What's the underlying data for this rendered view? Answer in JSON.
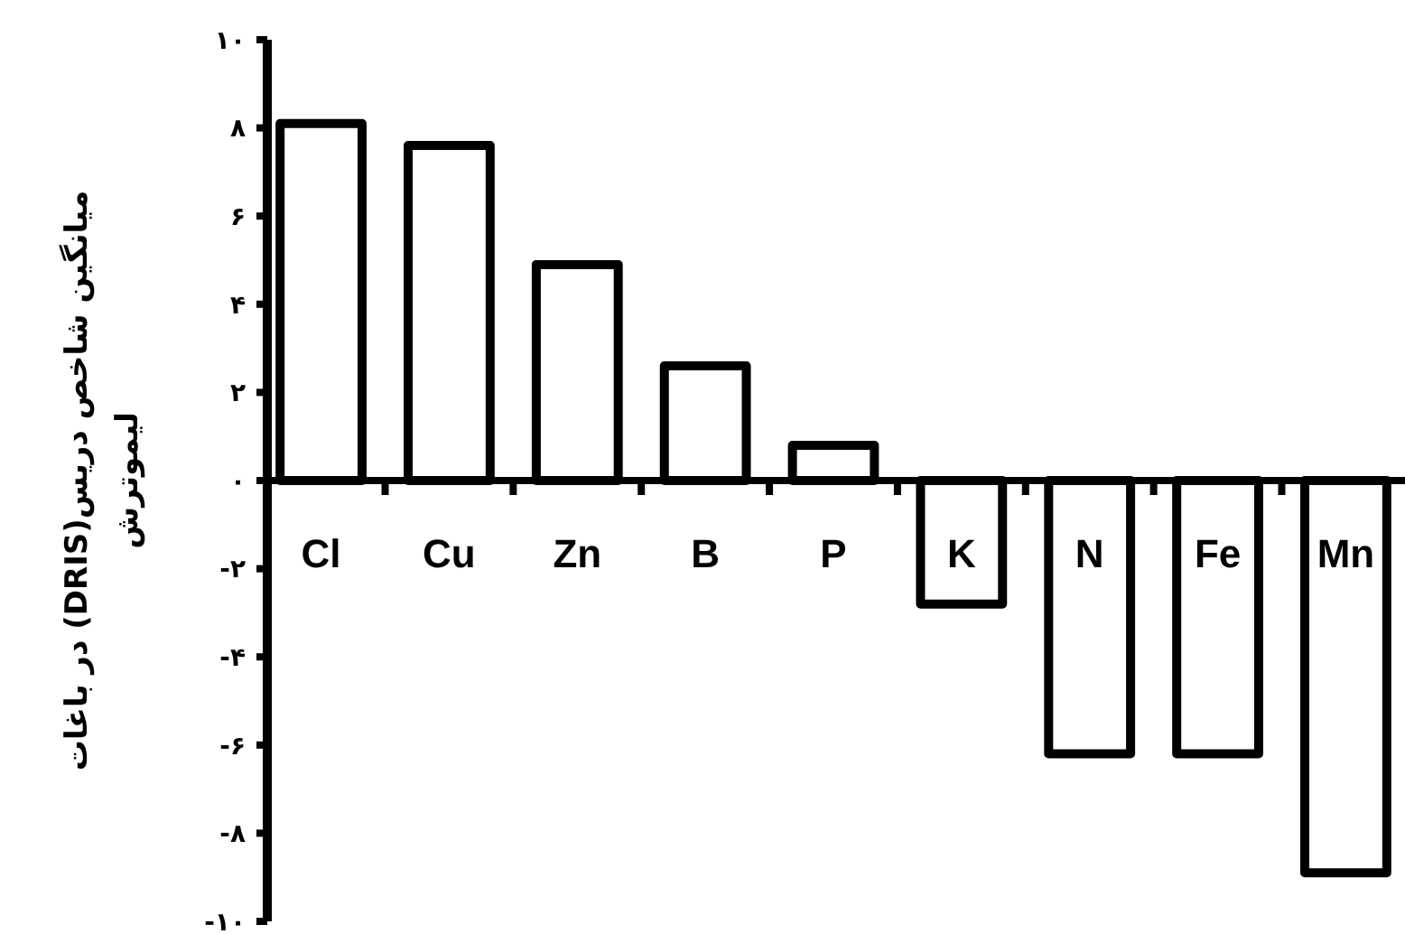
{
  "chart_data": {
    "type": "bar",
    "ylabel": "میانگین شاخص دریس(DRIS) در باغات\nلیموترش",
    "categories": [
      "Cl",
      "Cu",
      "Zn",
      "B",
      "P",
      "K",
      "N",
      "Fe",
      "Mn"
    ],
    "values": [
      8.1,
      7.6,
      4.9,
      2.6,
      0.8,
      -2.8,
      -6.2,
      -6.2,
      -8.9
    ],
    "color": "#ffffff",
    "ylim": [
      -10,
      10
    ],
    "yticks": [
      {
        "value": -10,
        "label": "-۱۰"
      },
      {
        "value": -8,
        "label": "-۸"
      },
      {
        "value": -6,
        "label": "-۶"
      },
      {
        "value": -4,
        "label": "-۴"
      },
      {
        "value": -2,
        "label": "-۲"
      },
      {
        "value": 0,
        "label": "۰"
      },
      {
        "value": 2,
        "label": "۲"
      },
      {
        "value": 4,
        "label": "۴"
      },
      {
        "value": 6,
        "label": "۶"
      },
      {
        "value": 8,
        "label": "۸"
      },
      {
        "value": 10,
        "label": "۱۰"
      }
    ],
    "grid": false
  }
}
